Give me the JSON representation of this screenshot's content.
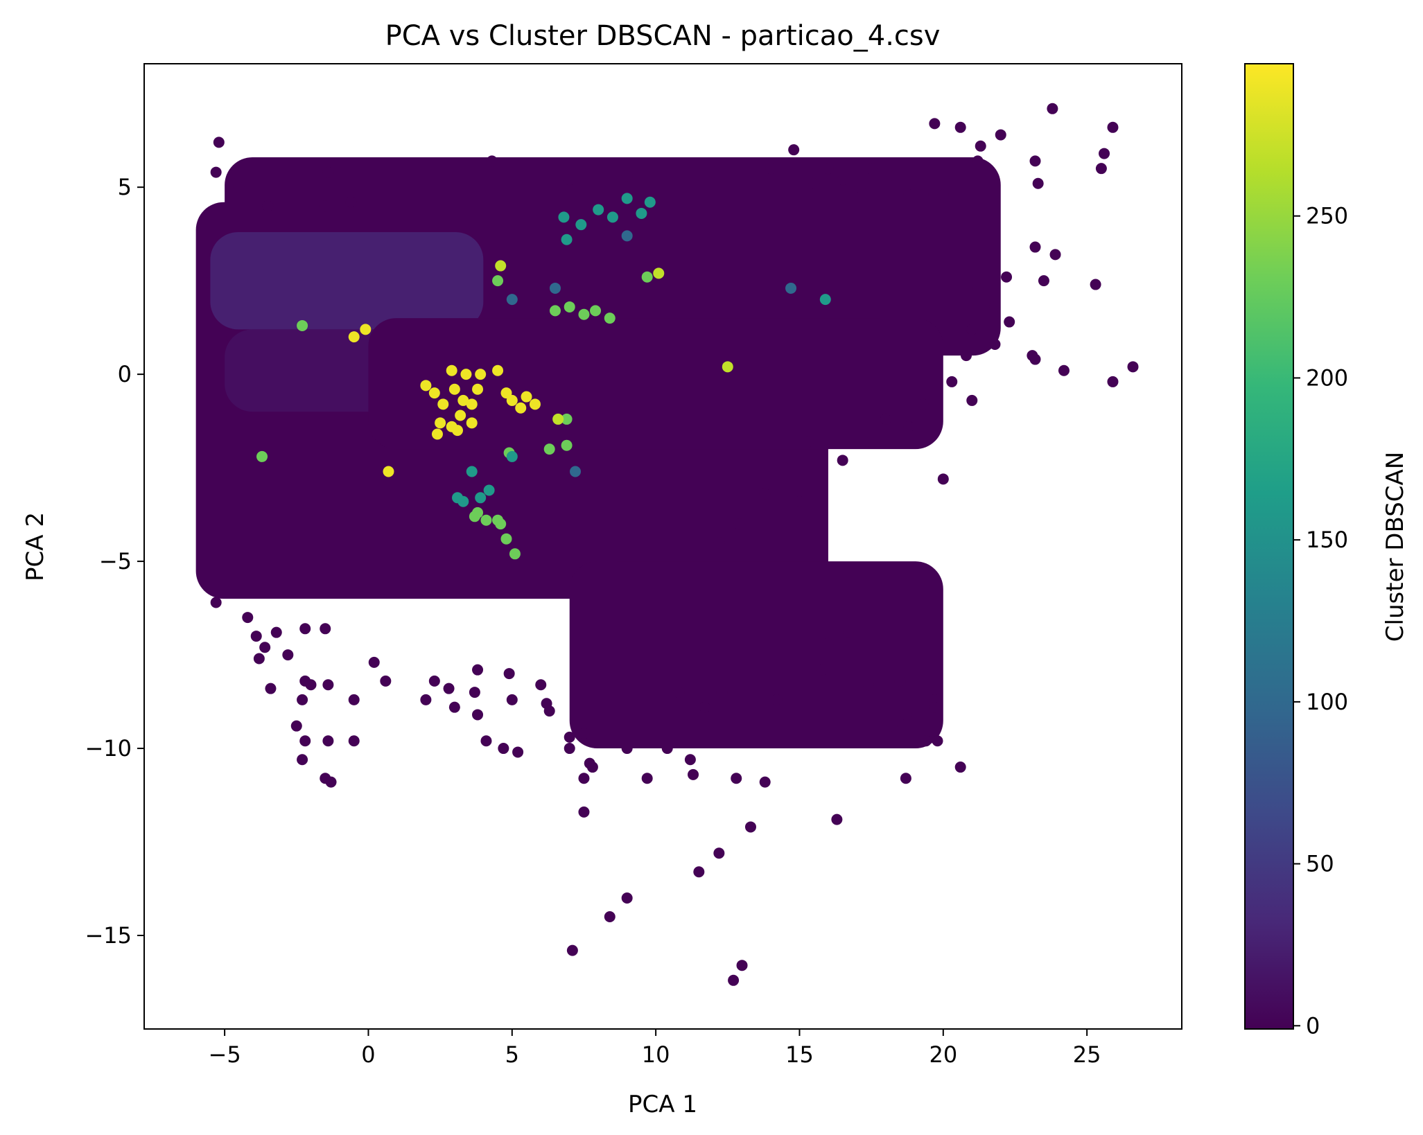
{
  "chart_data": {
    "type": "scatter",
    "title": "PCA vs Cluster DBSCAN - particao_4.csv",
    "xlabel": "PCA 1",
    "ylabel": "PCA 2",
    "xlim": [
      -7.8,
      28.3
    ],
    "ylim": [
      -17.5,
      8.3
    ],
    "xticks": [
      -5,
      0,
      5,
      10,
      15,
      20,
      25
    ],
    "yticks": [
      -15,
      -10,
      -5,
      0,
      5
    ],
    "xtick_labels": [
      "−5",
      "0",
      "5",
      "10",
      "15",
      "20",
      "25"
    ],
    "ytick_labels": [
      "−15",
      "−10",
      "−5",
      "0",
      "5"
    ],
    "grid": false,
    "colormap": "viridis",
    "colorbar": {
      "label": "Cluster DBSCAN",
      "range": [
        -1,
        297
      ],
      "ticks": [
        0,
        50,
        100,
        150,
        200,
        250
      ],
      "tick_labels": [
        "0",
        "50",
        "100",
        "150",
        "200",
        "250"
      ]
    },
    "colormap_stops": [
      "#440154",
      "#482878",
      "#3e4989",
      "#31688e",
      "#26828e",
      "#1f9e89",
      "#35b779",
      "#6ece58",
      "#b5de2b",
      "#fde725"
    ],
    "background_region_color": 3,
    "regions": [
      {
        "x": [
          -6,
          16
        ],
        "y": [
          -6,
          4.6
        ],
        "cluster": 0
      },
      {
        "x": [
          -5,
          22
        ],
        "y": [
          0.5,
          5.8
        ],
        "cluster": 0
      },
      {
        "x": [
          -5.5,
          4
        ],
        "y": [
          1.2,
          3.8
        ],
        "cluster": 25
      },
      {
        "x": [
          -5,
          2
        ],
        "y": [
          -1,
          1.2
        ],
        "cluster": 10
      },
      {
        "x": [
          0,
          20
        ],
        "y": [
          -2,
          1.5
        ],
        "cluster": 0
      },
      {
        "x": [
          7,
          20
        ],
        "y": [
          -10,
          -5
        ],
        "cluster": 0
      }
    ],
    "series": [
      {
        "cluster": 0,
        "points": [
          [
            -5.2,
            6.2
          ],
          [
            -5.3,
            5.4
          ],
          [
            -4.5,
            5.0
          ],
          [
            -1.4,
            5.4
          ],
          [
            -0.6,
            4.6
          ],
          [
            -1.5,
            4.5
          ],
          [
            -3.5,
            4.5
          ],
          [
            4.3,
            5.7
          ],
          [
            7.0,
            5.2
          ],
          [
            9.0,
            5.3
          ],
          [
            12.0,
            5.4
          ],
          [
            14.0,
            5.5
          ],
          [
            14.8,
            6.0
          ],
          [
            16.0,
            5.5
          ],
          [
            17.5,
            5.5
          ],
          [
            18.3,
            5.3
          ],
          [
            19.7,
            6.7
          ],
          [
            20.6,
            6.6
          ],
          [
            21.3,
            6.1
          ],
          [
            22.0,
            6.4
          ],
          [
            23.2,
            5.7
          ],
          [
            23.8,
            7.1
          ],
          [
            25.9,
            6.6
          ],
          [
            25.6,
            5.9
          ],
          [
            25.5,
            5.5
          ],
          [
            21.2,
            5.7
          ],
          [
            23.3,
            5.1
          ],
          [
            20.0,
            4.8
          ],
          [
            18.8,
            4.8
          ],
          [
            19.3,
            4.8
          ],
          [
            17.1,
            5.0
          ],
          [
            16.5,
            5.2
          ],
          [
            15.5,
            5.1
          ],
          [
            23.2,
            3.4
          ],
          [
            23.9,
            3.2
          ],
          [
            23.5,
            2.5
          ],
          [
            25.3,
            2.4
          ],
          [
            22.2,
            2.6
          ],
          [
            21.8,
            1.8
          ],
          [
            21.2,
            2.3
          ],
          [
            22.3,
            1.4
          ],
          [
            21.0,
            1.2
          ],
          [
            23.1,
            0.5
          ],
          [
            24.2,
            0.1
          ],
          [
            25.9,
            -0.2
          ],
          [
            26.6,
            0.2
          ],
          [
            23.2,
            0.4
          ],
          [
            21.8,
            0.8
          ],
          [
            20.8,
            0.5
          ],
          [
            20.3,
            -0.2
          ],
          [
            21.0,
            -0.7
          ],
          [
            19.3,
            -0.8
          ],
          [
            18.8,
            -1.4
          ],
          [
            18.0,
            -1.2
          ],
          [
            17.5,
            -1.8
          ],
          [
            20.0,
            -2.8
          ],
          [
            16.5,
            -2.3
          ],
          [
            15.3,
            -1.8
          ],
          [
            14.5,
            -2.5
          ],
          [
            13.8,
            -3.2
          ],
          [
            15.0,
            -3.4
          ],
          [
            12.9,
            -4.0
          ],
          [
            12.2,
            -4.5
          ],
          [
            -5.3,
            -6.1
          ],
          [
            -4.2,
            -6.5
          ],
          [
            -3.9,
            -7.0
          ],
          [
            -3.2,
            -6.9
          ],
          [
            -2.2,
            -6.8
          ],
          [
            -1.5,
            -6.8
          ],
          [
            -3.8,
            -7.6
          ],
          [
            -3.6,
            -7.3
          ],
          [
            -2.8,
            -7.5
          ],
          [
            -2.2,
            -8.2
          ],
          [
            -3.4,
            -8.4
          ],
          [
            -2.0,
            -8.3
          ],
          [
            -1.4,
            -8.3
          ],
          [
            -0.5,
            -8.7
          ],
          [
            -2.3,
            -8.7
          ],
          [
            -2.5,
            -9.4
          ],
          [
            -2.2,
            -9.8
          ],
          [
            -1.4,
            -9.8
          ],
          [
            -0.5,
            -9.8
          ],
          [
            -2.3,
            -10.3
          ],
          [
            -1.5,
            -10.8
          ],
          [
            -1.3,
            -10.9
          ],
          [
            0.2,
            -7.7
          ],
          [
            0.6,
            -8.2
          ],
          [
            2.8,
            -8.4
          ],
          [
            2.0,
            -8.7
          ],
          [
            2.3,
            -8.2
          ],
          [
            3.0,
            -8.9
          ],
          [
            3.8,
            -7.9
          ],
          [
            3.7,
            -8.5
          ],
          [
            3.8,
            -9.1
          ],
          [
            4.9,
            -8.0
          ],
          [
            5.0,
            -8.7
          ],
          [
            6.0,
            -8.3
          ],
          [
            6.2,
            -8.8
          ],
          [
            6.3,
            -9.0
          ],
          [
            4.1,
            -9.8
          ],
          [
            4.7,
            -10.0
          ],
          [
            5.2,
            -10.1
          ],
          [
            7.0,
            -9.7
          ],
          [
            7.5,
            -9.6
          ],
          [
            7.0,
            -10.0
          ],
          [
            7.7,
            -10.4
          ],
          [
            7.8,
            -10.5
          ],
          [
            7.5,
            -10.8
          ],
          [
            9.0,
            -10.0
          ],
          [
            10.4,
            -10.0
          ],
          [
            9.7,
            -10.8
          ],
          [
            11.2,
            -10.3
          ],
          [
            11.3,
            -10.7
          ],
          [
            7.5,
            -11.7
          ],
          [
            12.8,
            -10.8
          ],
          [
            13.8,
            -10.9
          ],
          [
            13.3,
            -12.1
          ],
          [
            12.2,
            -12.8
          ],
          [
            11.5,
            -13.3
          ],
          [
            9.0,
            -14.0
          ],
          [
            8.4,
            -14.5
          ],
          [
            7.1,
            -15.4
          ],
          [
            13.0,
            -15.8
          ],
          [
            12.7,
            -16.2
          ],
          [
            16.3,
            -11.9
          ],
          [
            18.7,
            -10.8
          ],
          [
            20.6,
            -10.5
          ],
          [
            19.4,
            -9.8
          ],
          [
            19.8,
            -9.8
          ],
          [
            18.2,
            -9.4
          ],
          [
            18.7,
            -9.1
          ],
          [
            19.7,
            -8.7
          ],
          [
            19.7,
            -8.9
          ],
          [
            18.5,
            -8.2
          ],
          [
            17.4,
            -8.3
          ],
          [
            16.7,
            -6.9
          ],
          [
            16.0,
            -7.2
          ],
          [
            15.8,
            -7.9
          ],
          [
            10.8,
            -8.5
          ],
          [
            11.7,
            -8.9
          ],
          [
            12.3,
            -8.5
          ],
          [
            14.2,
            -8.7
          ]
        ]
      },
      {
        "cluster": 290,
        "points": [
          [
            2.0,
            -0.3
          ],
          [
            2.3,
            -0.5
          ],
          [
            2.6,
            -0.8
          ],
          [
            3.0,
            -0.4
          ],
          [
            3.3,
            -0.7
          ],
          [
            2.9,
            0.1
          ],
          [
            3.4,
            0.0
          ],
          [
            2.5,
            -1.3
          ],
          [
            2.9,
            -1.4
          ],
          [
            3.2,
            -1.1
          ],
          [
            3.6,
            -1.3
          ],
          [
            2.4,
            -1.6
          ],
          [
            3.1,
            -1.5
          ],
          [
            3.6,
            -0.8
          ],
          [
            3.8,
            -0.4
          ],
          [
            3.9,
            0.0
          ],
          [
            4.5,
            0.1
          ],
          [
            4.8,
            -0.5
          ],
          [
            5.0,
            -0.7
          ],
          [
            5.5,
            -0.6
          ],
          [
            5.3,
            -0.9
          ],
          [
            5.8,
            -0.8
          ],
          [
            -0.5,
            1.0
          ],
          [
            -0.1,
            1.2
          ],
          [
            0.7,
            -2.6
          ]
        ]
      },
      {
        "cluster": 230,
        "points": [
          [
            7.0,
            1.8
          ],
          [
            7.5,
            1.6
          ],
          [
            7.9,
            1.7
          ],
          [
            8.4,
            1.5
          ],
          [
            6.5,
            1.7
          ],
          [
            9.7,
            2.6
          ],
          [
            4.5,
            2.5
          ],
          [
            3.7,
            -3.8
          ],
          [
            4.1,
            -3.9
          ],
          [
            4.6,
            -4.0
          ],
          [
            4.8,
            -4.4
          ],
          [
            5.1,
            -4.8
          ],
          [
            6.3,
            -2.0
          ],
          [
            6.9,
            -1.9
          ],
          [
            4.9,
            -2.1
          ],
          [
            6.9,
            -1.2
          ],
          [
            -2.3,
            1.3
          ],
          [
            -3.7,
            -2.2
          ],
          [
            3.8,
            -3.7
          ],
          [
            4.5,
            -3.9
          ]
        ]
      },
      {
        "cluster": 160,
        "points": [
          [
            6.8,
            4.2
          ],
          [
            7.4,
            4.0
          ],
          [
            8.0,
            4.4
          ],
          [
            8.5,
            4.2
          ],
          [
            9.0,
            4.7
          ],
          [
            9.8,
            4.6
          ],
          [
            9.5,
            4.3
          ],
          [
            3.1,
            -3.3
          ],
          [
            3.3,
            -3.4
          ],
          [
            3.9,
            -3.3
          ],
          [
            3.6,
            -2.6
          ],
          [
            6.9,
            3.6
          ],
          [
            15.9,
            2.0
          ],
          [
            5.0,
            -2.2
          ],
          [
            4.2,
            -3.1
          ]
        ]
      },
      {
        "cluster": 100,
        "points": [
          [
            14.7,
            2.3
          ],
          [
            9.0,
            3.7
          ],
          [
            6.5,
            2.3
          ],
          [
            7.2,
            -2.6
          ],
          [
            5.0,
            2.0
          ]
        ]
      },
      {
        "cluster": 270,
        "points": [
          [
            4.6,
            2.9
          ],
          [
            10.1,
            2.7
          ],
          [
            12.5,
            0.2
          ],
          [
            6.6,
            -1.2
          ]
        ]
      }
    ]
  }
}
